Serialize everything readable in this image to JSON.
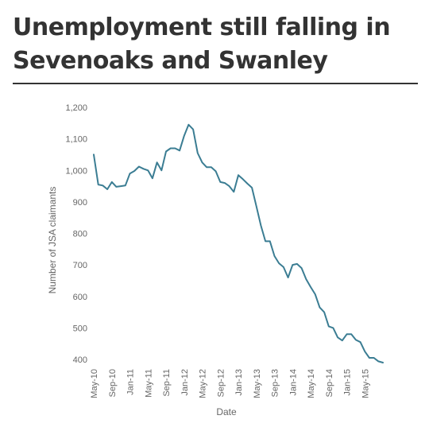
{
  "chart_data": {
    "type": "line",
    "title": "Unemployment still falling in Sevenoaks and Swanley",
    "xlabel": "Date",
    "ylabel": "Number of JSA claimants",
    "ylim": [
      400,
      1200
    ],
    "yticks": [
      "1,200",
      "1,100",
      "1,000",
      "900",
      "800",
      "700",
      "600",
      "500",
      "400"
    ],
    "xticks": [
      "May-10",
      "Sep-10",
      "Jan-11",
      "May-11",
      "Sep-11",
      "Jan-12",
      "May-12",
      "Sep-12",
      "Jan-13",
      "May-13",
      "Sep-13",
      "Jan-14",
      "May-14",
      "Sep-14",
      "Jan-15",
      "May-15"
    ],
    "grid": false,
    "legend": "none",
    "line_color": "#3b7d93",
    "series": [
      {
        "x": [
          "May-10",
          "Jun-10",
          "Jul-10",
          "Aug-10",
          "Sep-10",
          "Oct-10",
          "Nov-10",
          "Dec-10",
          "Jan-11",
          "Feb-11",
          "Mar-11",
          "Apr-11",
          "May-11",
          "Jun-11",
          "Jul-11",
          "Aug-11",
          "Sep-11",
          "Oct-11",
          "Nov-11",
          "Dec-11",
          "Jan-12",
          "Feb-12",
          "Mar-12",
          "Apr-12",
          "May-12",
          "Jun-12",
          "Jul-12",
          "Aug-12",
          "Sep-12",
          "Oct-12",
          "Nov-12",
          "Dec-12",
          "Jan-13",
          "Feb-13",
          "Mar-13",
          "Apr-13",
          "May-13",
          "Jun-13",
          "Jul-13",
          "Aug-13",
          "Sep-13",
          "Oct-13",
          "Nov-13",
          "Dec-13",
          "Jan-14",
          "Feb-14",
          "Mar-14",
          "Apr-14",
          "May-14",
          "Jun-14",
          "Jul-14",
          "Aug-14",
          "Sep-14",
          "Oct-14",
          "Nov-14",
          "Dec-14",
          "Jan-15",
          "Feb-15",
          "Mar-15",
          "Apr-15",
          "May-15",
          "Jun-15",
          "Jul-15",
          "Aug-15",
          "Sep-15"
        ],
        "values": [
          1050,
          955,
          952,
          940,
          963,
          948,
          950,
          952,
          990,
          998,
          1012,
          1005,
          1000,
          975,
          1025,
          1000,
          1060,
          1070,
          1070,
          1063,
          1110,
          1145,
          1130,
          1055,
          1025,
          1010,
          1010,
          997,
          963,
          960,
          950,
          932,
          985,
          972,
          958,
          945,
          885,
          825,
          775,
          775,
          728,
          705,
          693,
          660,
          700,
          703,
          690,
          655,
          630,
          607,
          565,
          550,
          505,
          500,
          470,
          460,
          480,
          480,
          462,
          455,
          425,
          405,
          405,
          394,
          390
        ]
      }
    ]
  }
}
